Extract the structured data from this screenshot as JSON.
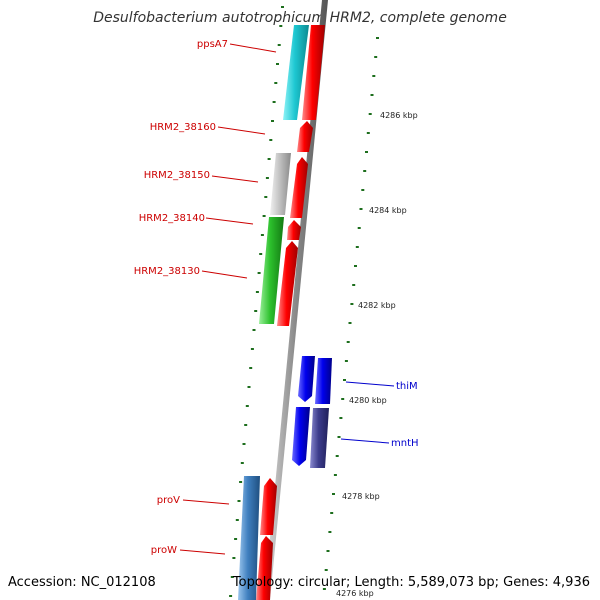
{
  "title": "Desulfobacterium autotrophicum HRM2, complete genome",
  "accession": "Accession: NC_012108",
  "topology": "Topology: circular; Length: 5,589,073 bp; Genes: 4,936",
  "colors": {
    "cyan": "#1ec8d2",
    "red": "#ff0000",
    "gray": "#bdbdbd",
    "green": "#2cc02c",
    "blue": "#0000ee",
    "slate": "#3c3c8c",
    "steel": "#3f7fbf",
    "label_red": "#cc0000",
    "label_blue": "#0000cc",
    "tick_green": "#1d6e1d"
  },
  "gene_labels": [
    {
      "id": "ppsA7",
      "text": "ppsA7",
      "color": "label_red"
    },
    {
      "id": "hrm38160",
      "text": "HRM2_38160",
      "color": "label_red"
    },
    {
      "id": "hrm38150",
      "text": "HRM2_38150",
      "color": "label_red"
    },
    {
      "id": "hrm38140",
      "text": "HRM2_38140",
      "color": "label_red"
    },
    {
      "id": "hrm38130",
      "text": "HRM2_38130",
      "color": "label_red"
    },
    {
      "id": "thiM",
      "text": "thiM",
      "color": "label_blue"
    },
    {
      "id": "mntH",
      "text": "mntH",
      "color": "label_blue"
    },
    {
      "id": "proV",
      "text": "proV",
      "color": "label_red"
    },
    {
      "id": "proW",
      "text": "proW",
      "color": "label_red"
    }
  ],
  "scale_labels": [
    "4286 kbp",
    "4284 kbp",
    "4282 kbp",
    "4280 kbp",
    "4278 kbp",
    "4276 kbp"
  ]
}
